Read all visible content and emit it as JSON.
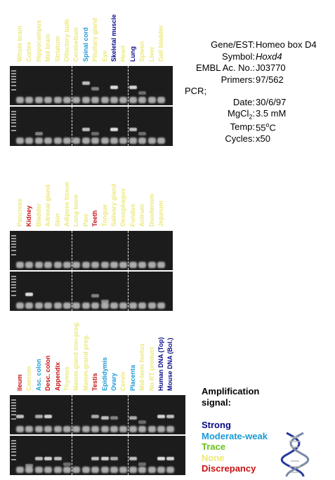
{
  "colors": {
    "strong": "#0a0a8a",
    "moderate": "#1a9ad6",
    "trace": "#66c21a",
    "none": "#ece87a",
    "discrepancy": "#c81010"
  },
  "info": {
    "gene_label": "Gene/EST:",
    "gene_value": "Homeo box D4",
    "symbol_label": "Symbol:",
    "symbol_value": "Hoxd4",
    "embl_label": "EMBL Ac. No.:",
    "embl_value": "J03770",
    "primers_label": "Primers:",
    "primers_value": "97/562",
    "pcr_label": "PCR;",
    "date_label": "Date:",
    "date_value": "30/6/97",
    "mgcl_label_pre": "MgCl",
    "mgcl_sub": "2",
    "mgcl_label_post": ":",
    "mgcl_value": "3.5 mM",
    "temp_label": "Temp:",
    "temp_value_pre": "55",
    "temp_sup": "o",
    "temp_value_post": "C",
    "cycles_label": "Cycles:",
    "cycles_value": "x50"
  },
  "panels": [
    {
      "lanes": [
        {
          "name": "Whole brain",
          "status": "none"
        },
        {
          "name": "Cortex",
          "status": "none"
        },
        {
          "name": "Hippocampus",
          "status": "none"
        },
        {
          "name": "Mid brain",
          "status": "none"
        },
        {
          "name": "Striatum",
          "status": "none"
        },
        {
          "name": "Olfactory bulb",
          "status": "none"
        },
        {
          "name": "Cerebellum",
          "status": "none"
        },
        {
          "name": "Spinal cord",
          "status": "moderate"
        },
        {
          "name": "Pituitary gland",
          "status": "none"
        },
        {
          "name": "Eye",
          "status": "none"
        },
        {
          "name": "Skeletal muscle",
          "status": "strong"
        },
        {
          "name": "Heart",
          "status": "none"
        },
        {
          "name": "Lung",
          "status": "strong"
        },
        {
          "name": "Spleen",
          "status": "none"
        },
        {
          "name": "Liver",
          "status": "none"
        },
        {
          "name": "Gall bladder",
          "status": "none"
        }
      ]
    },
    {
      "lanes": [
        {
          "name": "Pancreas",
          "status": "none"
        },
        {
          "name": "Kidney",
          "status": "discrepancy"
        },
        {
          "name": "Bladder",
          "status": "none"
        },
        {
          "name": "Adrenal gland",
          "status": "none"
        },
        {
          "name": "Skin",
          "status": "none"
        },
        {
          "name": "Adipose tissue",
          "status": "none"
        },
        {
          "name": "Long bone",
          "status": "none"
        },
        {
          "name": "Paw",
          "status": "none"
        },
        {
          "name": "Teeth",
          "status": "discrepancy"
        },
        {
          "name": "Tongue",
          "status": "none"
        },
        {
          "name": "Salivary gland",
          "status": "none"
        },
        {
          "name": "Oesophagus",
          "status": "none"
        },
        {
          "name": "Fundus",
          "status": "none"
        },
        {
          "name": "Antrum",
          "status": "none"
        },
        {
          "name": "Duodenum",
          "status": "none"
        },
        {
          "name": "Jejunum",
          "status": "none"
        }
      ]
    },
    {
      "lanes": [
        {
          "name": "Ileum",
          "status": "discrepancy"
        },
        {
          "name": "Caecum",
          "status": "none"
        },
        {
          "name": "Asc. colon",
          "status": "moderate"
        },
        {
          "name": "Desc. colon",
          "status": "discrepancy"
        },
        {
          "name": "Appendix",
          "status": "discrepancy"
        },
        {
          "name": "Thymus",
          "status": "none"
        },
        {
          "name": "Mamm.gland non-preg.",
          "status": "none"
        },
        {
          "name": "Mamm.grand preg.",
          "status": "none"
        },
        {
          "name": "Testis",
          "status": "discrepancy"
        },
        {
          "name": "Epididymis",
          "status": "moderate"
        },
        {
          "name": "Ovary",
          "status": "moderate"
        },
        {
          "name": "Cervix",
          "status": "none"
        },
        {
          "name": "Placenta",
          "status": "moderate"
        },
        {
          "name": "Mid-term foetus",
          "status": "none"
        },
        {
          "name": "No RT product",
          "status": "none"
        },
        {
          "name": "Human DNA (Top)",
          "status": "strong"
        },
        {
          "name": "Mouse DNA (Bol.)",
          "status": "strong"
        }
      ]
    }
  ],
  "legend": {
    "title_line1": "Amplification",
    "title_line2": "signal:",
    "items": [
      {
        "label": "Strong",
        "status": "strong"
      },
      {
        "label": "Moderate-weak",
        "status": "moderate"
      },
      {
        "label": "Trace",
        "status": "trace"
      },
      {
        "label": "None",
        "status": "none"
      },
      {
        "label": "Discrepancy",
        "status": "discrepancy"
      }
    ]
  }
}
